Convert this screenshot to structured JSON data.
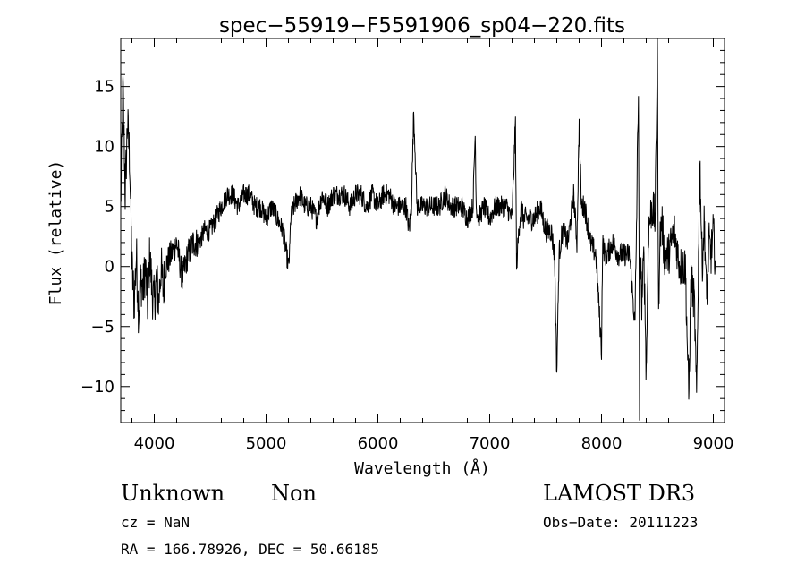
{
  "chart_data": {
    "type": "line",
    "title": "spec−55919−F5591906_sp04−220.fits",
    "xlabel": "Wavelength (Å)",
    "ylabel": "Flux (relative)",
    "xlim": [
      3700,
      9100
    ],
    "ylim": [
      -13,
      19
    ],
    "xticks": [
      4000,
      5000,
      6000,
      7000,
      8000,
      9000
    ],
    "yticks": [
      -10,
      -5,
      0,
      5,
      10,
      15
    ],
    "ytick_labels": [
      "−10",
      "−5",
      "0",
      "5",
      "10",
      "15"
    ],
    "series": [
      {
        "name": "flux",
        "x": [
          3700,
          3720,
          3740,
          3760,
          3780,
          3800,
          3820,
          3840,
          3860,
          3880,
          3900,
          3920,
          3940,
          3960,
          3980,
          4000,
          4020,
          4040,
          4060,
          4080,
          4100,
          4150,
          4200,
          4250,
          4300,
          4350,
          4400,
          4450,
          4500,
          4550,
          4600,
          4650,
          4700,
          4750,
          4800,
          4850,
          4900,
          4950,
          5000,
          5050,
          5100,
          5150,
          5200,
          5210,
          5220,
          5250,
          5300,
          5350,
          5400,
          5450,
          5500,
          5550,
          5600,
          5650,
          5700,
          5750,
          5800,
          5850,
          5900,
          5950,
          6000,
          6050,
          6100,
          6150,
          6200,
          6250,
          6280,
          6290,
          6300,
          6320,
          6350,
          6400,
          6450,
          6500,
          6550,
          6600,
          6650,
          6700,
          6750,
          6800,
          6850,
          6870,
          6880,
          6900,
          6950,
          7000,
          7050,
          7100,
          7150,
          7200,
          7230,
          7240,
          7260,
          7280,
          7300,
          7350,
          7400,
          7450,
          7500,
          7550,
          7580,
          7600,
          7620,
          7650,
          7700,
          7750,
          7780,
          7800,
          7820,
          7850,
          7900,
          7950,
          8000,
          8010,
          8030,
          8050,
          8100,
          8150,
          8200,
          8250,
          8300,
          8330,
          8340,
          8350,
          8360,
          8380,
          8400,
          8420,
          8450,
          8480,
          8500,
          8510,
          8520,
          8540,
          8560,
          8600,
          8650,
          8700,
          8750,
          8780,
          8800,
          8830,
          8850,
          8880,
          8900,
          8920,
          8940,
          8960,
          8980,
          9000,
          9020
        ],
        "y": [
          5,
          15,
          6,
          12,
          9,
          0,
          -3,
          1,
          -4,
          -1,
          -2,
          0,
          -3,
          1,
          -2,
          -3,
          -1,
          -3,
          0,
          -2,
          0,
          1,
          2,
          -1,
          1,
          2,
          2,
          3,
          3,
          4,
          5,
          6,
          6,
          5,
          6,
          6,
          5,
          5,
          4,
          5,
          4,
          3,
          0,
          1,
          4,
          5,
          6,
          5,
          5,
          4,
          6,
          5,
          6,
          6,
          6,
          5,
          6,
          6,
          5,
          6,
          5,
          6,
          6,
          5,
          5,
          5,
          3,
          4,
          5,
          13,
          5,
          5,
          5,
          5,
          5,
          6,
          5,
          5,
          5,
          4,
          5,
          11,
          5,
          4,
          5,
          4,
          5,
          5,
          5,
          4,
          12,
          0,
          3,
          5,
          4,
          4,
          4,
          5,
          3,
          3,
          1,
          -9,
          1,
          3,
          2,
          6,
          2,
          12,
          5,
          5,
          2,
          1,
          -7,
          2,
          1,
          1,
          2,
          1,
          1,
          1,
          -5,
          15,
          -12,
          2,
          -3,
          1,
          -9,
          3,
          5,
          4,
          19,
          -5,
          2,
          4,
          1,
          1,
          3,
          0,
          0,
          -11,
          -1,
          -3,
          -11,
          9,
          0,
          4,
          -3,
          2,
          1,
          3,
          0
        ]
      }
    ]
  },
  "info": {
    "class": "Unknown",
    "subclass": "Non",
    "survey": "LAMOST DR3",
    "cz": "cz = NaN",
    "obs_date": "Obs−Date: 20111223",
    "radec": "RA = 166.78926, DEC =  50.66185"
  }
}
